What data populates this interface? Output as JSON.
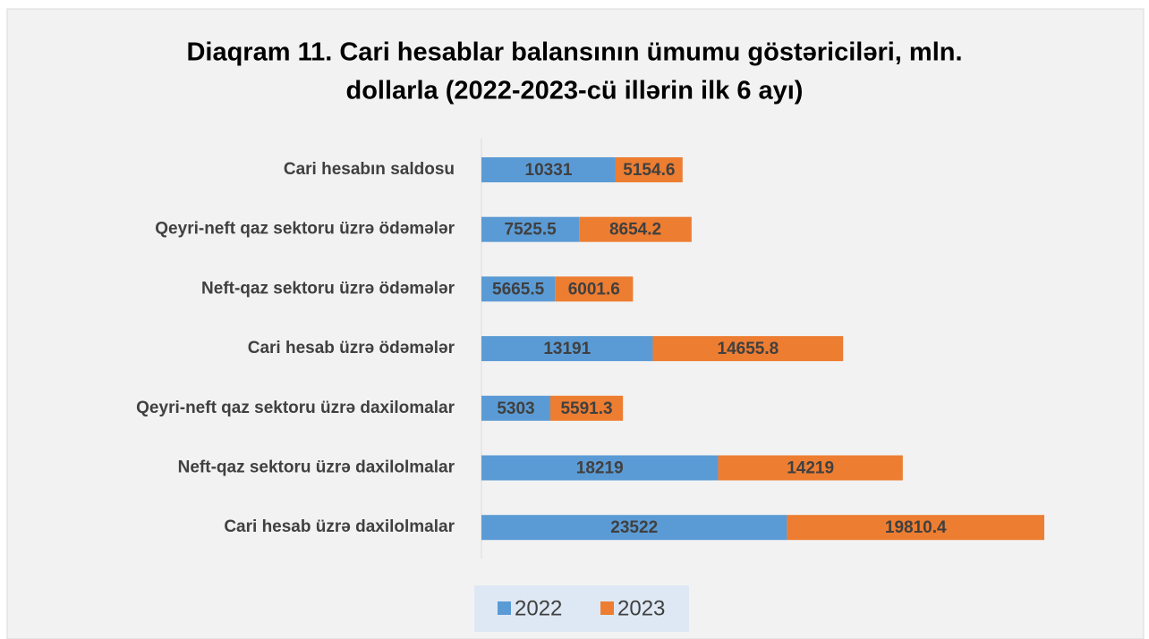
{
  "chart_data": {
    "type": "stacked_barh",
    "title": [
      "Diaqram 11. Cari hesablar balansının ümumu göstəriciləri, mln.",
      "dollarla (2022-2023-cü illərin ilk 6 ayı)"
    ],
    "categories": [
      "Cari hesabın saldosu",
      "Qeyri-neft qaz sektoru üzrə ödəmələr",
      "Neft-qaz sektoru üzrə ödəmələr",
      "Cari hesab üzrə ödəmələr",
      "Qeyri-neft qaz sektoru üzrə daxilomalar",
      "Neft-qaz sektoru üzrə daxilolmalar",
      "Cari hesab üzrə daxilolmalar"
    ],
    "series": [
      {
        "name": "2022",
        "color": "#5b9bd5",
        "values": [
          10331,
          7525.5,
          5665.5,
          13191,
          5303,
          18219,
          23522
        ]
      },
      {
        "name": "2023",
        "color": "#ed7d31",
        "values": [
          5154.6,
          8654.2,
          6001.6,
          14655.8,
          5591.3,
          14219,
          19810.4
        ]
      }
    ],
    "legend": "bottom"
  }
}
